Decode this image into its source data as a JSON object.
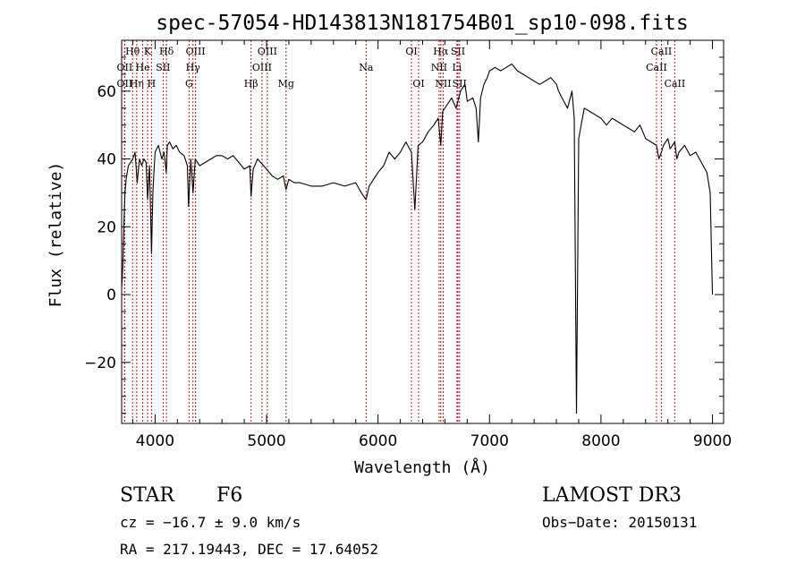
{
  "colors": {
    "spectrum": "#000000",
    "lines": "#b01818",
    "axis": "#000000"
  },
  "chart_data": {
    "type": "line",
    "title": "spec-57054-HD143813N181754B01_sp10-098.fits",
    "xlabel": "Wavelength (Å)",
    "ylabel": "Flux (relative)",
    "xlim": [
      3700,
      9100
    ],
    "ylim": [
      -38,
      75
    ],
    "xticks": [
      4000,
      5000,
      6000,
      7000,
      8000,
      9000
    ],
    "xtick_labels": [
      "4000",
      "5000",
      "6000",
      "7000",
      "8000",
      "9000"
    ],
    "yticks": [
      -20,
      0,
      20,
      40,
      60
    ],
    "ytick_labels": [
      "−20",
      "0",
      "20",
      "40",
      "60"
    ],
    "series": [
      {
        "name": "flux",
        "x": [
          3700,
          3710,
          3720,
          3730,
          3740,
          3760,
          3780,
          3800,
          3820,
          3840,
          3860,
          3880,
          3900,
          3920,
          3933,
          3950,
          3968,
          3980,
          3990,
          4000,
          4030,
          4060,
          4080,
          4100,
          4110,
          4130,
          4160,
          4190,
          4220,
          4260,
          4290,
          4300,
          4320,
          4340,
          4360,
          4400,
          4450,
          4500,
          4550,
          4600,
          4650,
          4700,
          4750,
          4800,
          4850,
          4861,
          4880,
          4920,
          5000,
          5050,
          5100,
          5150,
          5175,
          5200,
          5250,
          5300,
          5400,
          5500,
          5600,
          5700,
          5800,
          5850,
          5893,
          5920,
          6000,
          6050,
          6100,
          6150,
          6200,
          6250,
          6300,
          6330,
          6360,
          6400,
          6450,
          6500,
          6540,
          6563,
          6580,
          6620,
          6660,
          6700,
          6740,
          6780,
          6800,
          6850,
          6880,
          6900,
          6920,
          6950,
          6980,
          7000,
          7050,
          7100,
          7150,
          7200,
          7250,
          7300,
          7350,
          7400,
          7450,
          7500,
          7550,
          7600,
          7620,
          7650,
          7700,
          7740,
          7760,
          7780,
          7800,
          7850,
          7900,
          7950,
          8000,
          8050,
          8100,
          8150,
          8200,
          8250,
          8300,
          8350,
          8400,
          8450,
          8498,
          8520,
          8542,
          8560,
          8600,
          8620,
          8662,
          8680,
          8700,
          8750,
          8800,
          8850,
          8900,
          8950,
          8980,
          9000
        ],
        "y": [
          2,
          8,
          20,
          30,
          34,
          38,
          39,
          40,
          42,
          33,
          40,
          38,
          40,
          39,
          28,
          38,
          12,
          30,
          36,
          42,
          44,
          40,
          42,
          36,
          44,
          45,
          43,
          44,
          42,
          41,
          38,
          26,
          40,
          30,
          40,
          38,
          39,
          40,
          41,
          41,
          40,
          41,
          39,
          37,
          38,
          29,
          37,
          40,
          37,
          35,
          34,
          35,
          31,
          34,
          33,
          33,
          32,
          32,
          33,
          32,
          33,
          30,
          28,
          32,
          36,
          38,
          42,
          40,
          42,
          45,
          42,
          25,
          44,
          45,
          48,
          50,
          52,
          44,
          54,
          56,
          58,
          55,
          60,
          62,
          57,
          58,
          55,
          45,
          58,
          62,
          64,
          66,
          67,
          66,
          67,
          68,
          66,
          65,
          64,
          63,
          62,
          63,
          64,
          62,
          60,
          58,
          55,
          60,
          52,
          -35,
          46,
          55,
          54,
          53,
          52,
          50,
          52,
          51,
          50,
          49,
          48,
          50,
          46,
          45,
          44,
          40,
          42,
          44,
          46,
          43,
          45,
          40,
          42,
          44,
          41,
          42,
          39,
          36,
          30,
          0
        ]
      }
    ],
    "lines": [
      {
        "label": "Hθ",
        "x": 3798,
        "row": 0
      },
      {
        "label": "OII",
        "x": 3727,
        "row": 1
      },
      {
        "label": "OII",
        "x": 3727,
        "row": 2
      },
      {
        "label": "Hη",
        "x": 3835,
        "row": 2
      },
      {
        "label": "He",
        "x": 3889,
        "row": 1
      },
      {
        "label": "K",
        "x": 3933,
        "row": 0
      },
      {
        "label": "H",
        "x": 3968,
        "row": 2
      },
      {
        "label": "SII",
        "x": 4072,
        "row": 1
      },
      {
        "label": "Hδ",
        "x": 4102,
        "row": 0
      },
      {
        "label": "OIII",
        "x": 4363,
        "row": 0
      },
      {
        "label": "Hγ",
        "x": 4340,
        "row": 1
      },
      {
        "label": "G",
        "x": 4305,
        "row": 2
      },
      {
        "label": "Hβ",
        "x": 4861,
        "row": 2
      },
      {
        "label": "OIII",
        "x": 5007,
        "row": 0
      },
      {
        "label": "OIII",
        "x": 4959,
        "row": 1
      },
      {
        "label": "Mg",
        "x": 5175,
        "row": 2
      },
      {
        "label": "Na",
        "x": 5893,
        "row": 1
      },
      {
        "label": "OI",
        "x": 6300,
        "row": 0
      },
      {
        "label": "OI",
        "x": 6364,
        "row": 2
      },
      {
        "label": "Hα",
        "x": 6563,
        "row": 0
      },
      {
        "label": "NII",
        "x": 6548,
        "row": 1
      },
      {
        "label": "NII",
        "x": 6584,
        "row": 2
      },
      {
        "label": "SII",
        "x": 6717,
        "row": 0
      },
      {
        "label": "Li",
        "x": 6708,
        "row": 1
      },
      {
        "label": "SII",
        "x": 6731,
        "row": 2
      },
      {
        "label": "CaII",
        "x": 8542,
        "row": 0
      },
      {
        "label": "CaII",
        "x": 8498,
        "row": 1
      },
      {
        "label": "CaII",
        "x": 8662,
        "row": 2
      }
    ]
  },
  "info": {
    "object_class": "STAR",
    "subclass": "F6",
    "survey": "LAMOST DR3",
    "redshift": "cz = −16.7 ± 9.0 km/s",
    "obs_date": "Obs−Date: 20150131",
    "coords": "RA = 217.19443, DEC =  17.64052"
  }
}
